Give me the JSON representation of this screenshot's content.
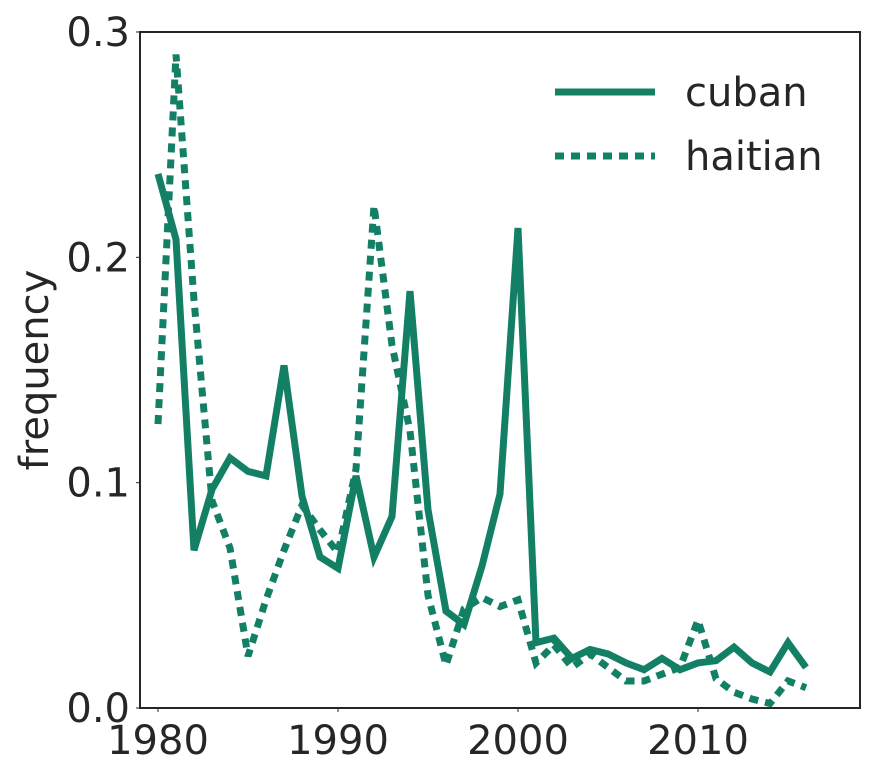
{
  "chart_data": {
    "type": "line",
    "ylabel": "frequency",
    "x": [
      1980,
      1981,
      1982,
      1983,
      1984,
      1985,
      1986,
      1987,
      1988,
      1989,
      1990,
      1991,
      1992,
      1993,
      1994,
      1995,
      1996,
      1997,
      1998,
      1999,
      2000,
      2001,
      2002,
      2003,
      2004,
      2005,
      2006,
      2007,
      2008,
      2009,
      2010,
      2011,
      2012,
      2013,
      2014,
      2015,
      2016
    ],
    "series": [
      {
        "name": "cuban",
        "color": "#138066",
        "style": "solid",
        "values": [
          0.237,
          0.208,
          0.07,
          0.097,
          0.111,
          0.105,
          0.103,
          0.152,
          0.094,
          0.067,
          0.062,
          0.103,
          0.067,
          0.085,
          0.185,
          0.088,
          0.043,
          0.037,
          0.063,
          0.095,
          0.213,
          0.029,
          0.031,
          0.022,
          0.026,
          0.024,
          0.02,
          0.017,
          0.022,
          0.017,
          0.02,
          0.021,
          0.027,
          0.02,
          0.016,
          0.029,
          0.018
        ]
      },
      {
        "name": "haitian",
        "color": "#138066",
        "style": "dashed",
        "values": [
          0.126,
          0.29,
          0.181,
          0.092,
          0.071,
          0.023,
          0.048,
          0.07,
          0.09,
          0.079,
          0.069,
          0.106,
          0.223,
          0.161,
          0.123,
          0.05,
          0.019,
          0.044,
          0.049,
          0.045,
          0.048,
          0.02,
          0.028,
          0.018,
          0.024,
          0.018,
          0.012,
          0.012,
          0.015,
          0.018,
          0.039,
          0.013,
          0.007,
          0.004,
          0.002,
          0.012,
          0.009
        ]
      }
    ],
    "xlim": [
      1979,
      2019
    ],
    "xticks": [
      1980,
      1990,
      2000,
      2010
    ],
    "ylim": [
      0,
      0.3
    ],
    "yticks": [
      {
        "value": 0,
        "label": "0.0"
      },
      0.1,
      0.2,
      0.3
    ],
    "legend": "upper right",
    "grid": false
  }
}
